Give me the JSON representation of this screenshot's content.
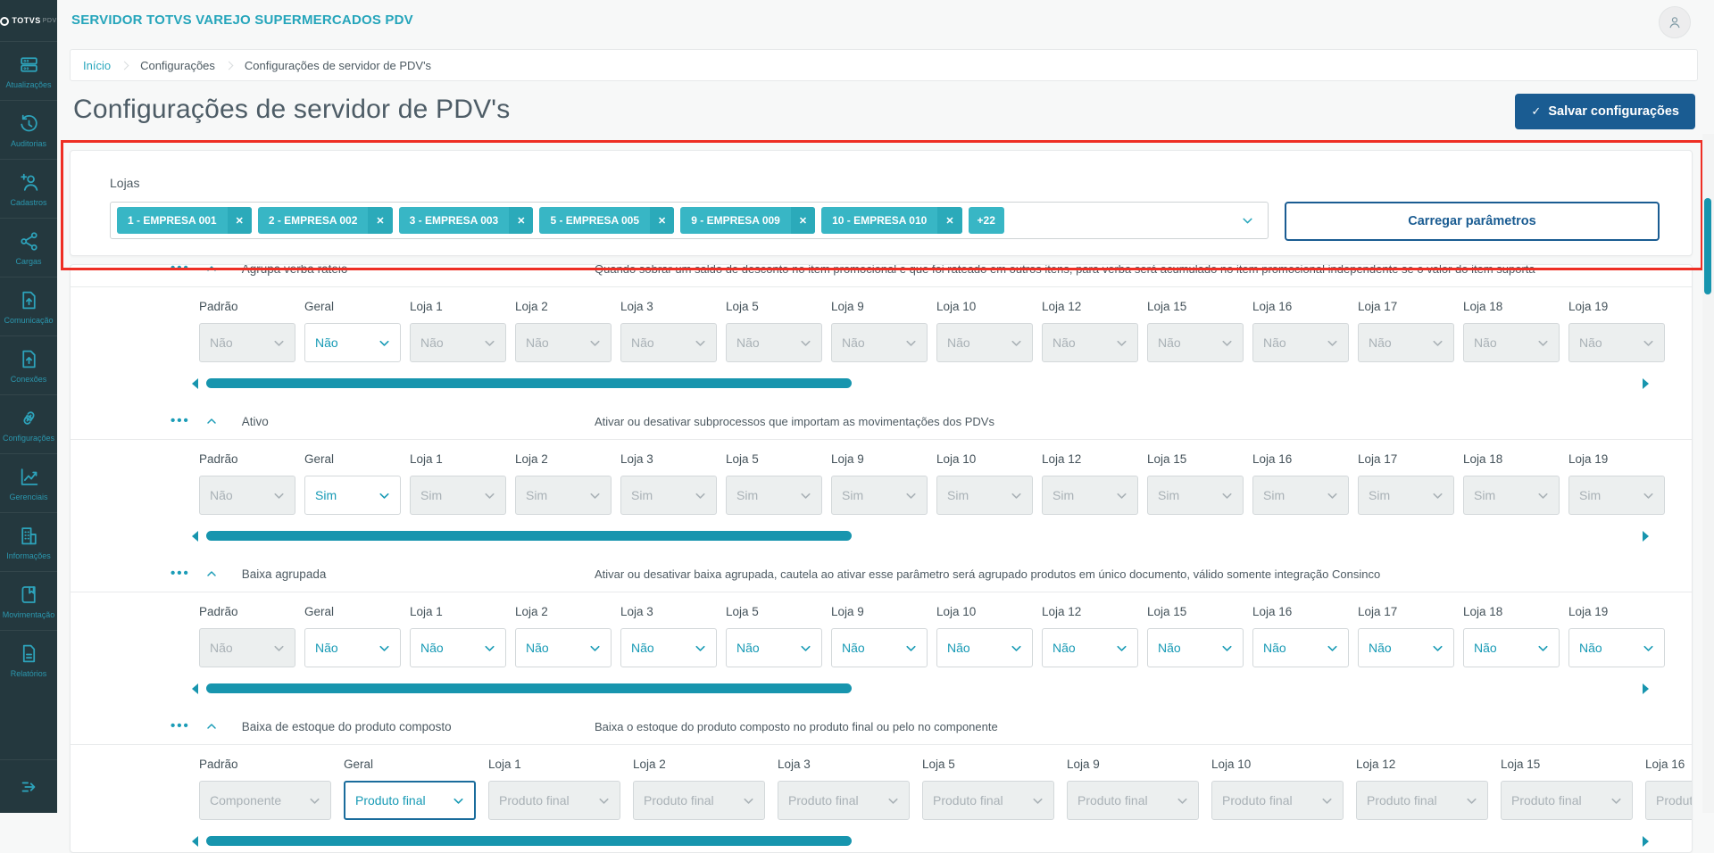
{
  "app": {
    "title": "SERVIDOR TOTVS VAREJO SUPERMERCADOS PDV"
  },
  "sidebar": {
    "logo_text": "TOTVS",
    "logo_suffix": "PDV",
    "items": [
      {
        "label": "Atualizações",
        "icon": "updates-icon"
      },
      {
        "label": "Auditorias",
        "icon": "audit-history-icon"
      },
      {
        "label": "Cadastros",
        "icon": "add-user-icon"
      },
      {
        "label": "Cargas",
        "icon": "share-icon"
      },
      {
        "label": "Comunicação",
        "icon": "file-upload-icon"
      },
      {
        "label": "Conexões",
        "icon": "file-upload-icon"
      },
      {
        "label": "Configurações",
        "icon": "link-icon"
      },
      {
        "label": "Gerenciais",
        "icon": "chart-icon"
      },
      {
        "label": "Informações",
        "icon": "building-icon"
      },
      {
        "label": "Movimentação",
        "icon": "book-icon"
      },
      {
        "label": "Relatórios",
        "icon": "report-icon"
      }
    ]
  },
  "breadcrumb": [
    "Início",
    "Configurações",
    "Configurações de servidor de PDV's"
  ],
  "page": {
    "title": "Configurações de servidor de PDV's",
    "save_button": "Salvar configurações",
    "save_check": "✓"
  },
  "lojas": {
    "label": "Lojas",
    "chips": [
      "1 - EMPRESA 001",
      "2 - EMPRESA 002",
      "3 - EMPRESA 003",
      "5 - EMPRESA 005",
      "9 - EMPRESA 009",
      "10 - EMPRESA 010"
    ],
    "more_chip": "+22",
    "remove_glyph": "✕",
    "load_button": "Carregar parâmetros"
  },
  "parameters": {
    "sections": [
      {
        "name": "Agrupa verba rateio",
        "description": "Quando sobrar um saldo de desconto no item promocional e que foi rateado em outros itens, para verba será acumulado no item promocional independente se o valor do item suporta",
        "clipped": true,
        "wide": false,
        "columns": [
          "Padrão",
          "Geral",
          "Loja 1",
          "Loja 2",
          "Loja 3",
          "Loja 5",
          "Loja 9",
          "Loja 10",
          "Loja 12",
          "Loja 15",
          "Loja 16",
          "Loja 17",
          "Loja 18",
          "Loja 19"
        ],
        "values": [
          {
            "value": "Não",
            "enabled": false
          },
          {
            "value": "Não",
            "enabled": true
          },
          {
            "value": "Não",
            "enabled": false
          },
          {
            "value": "Não",
            "enabled": false
          },
          {
            "value": "Não",
            "enabled": false
          },
          {
            "value": "Não",
            "enabled": false
          },
          {
            "value": "Não",
            "enabled": false
          },
          {
            "value": "Não",
            "enabled": false
          },
          {
            "value": "Não",
            "enabled": false
          },
          {
            "value": "Não",
            "enabled": false
          },
          {
            "value": "Não",
            "enabled": false
          },
          {
            "value": "Não",
            "enabled": false
          },
          {
            "value": "Não",
            "enabled": false
          },
          {
            "value": "Não",
            "enabled": false
          }
        ]
      },
      {
        "name": "Ativo",
        "description": "Ativar ou desativar subprocessos que importam as movimentações dos PDVs",
        "clipped": false,
        "wide": false,
        "columns": [
          "Padrão",
          "Geral",
          "Loja 1",
          "Loja 2",
          "Loja 3",
          "Loja 5",
          "Loja 9",
          "Loja 10",
          "Loja 12",
          "Loja 15",
          "Loja 16",
          "Loja 17",
          "Loja 18",
          "Loja 19"
        ],
        "values": [
          {
            "value": "Não",
            "enabled": false
          },
          {
            "value": "Sim",
            "enabled": true
          },
          {
            "value": "Sim",
            "enabled": false
          },
          {
            "value": "Sim",
            "enabled": false
          },
          {
            "value": "Sim",
            "enabled": false
          },
          {
            "value": "Sim",
            "enabled": false
          },
          {
            "value": "Sim",
            "enabled": false
          },
          {
            "value": "Sim",
            "enabled": false
          },
          {
            "value": "Sim",
            "enabled": false
          },
          {
            "value": "Sim",
            "enabled": false
          },
          {
            "value": "Sim",
            "enabled": false
          },
          {
            "value": "Sim",
            "enabled": false
          },
          {
            "value": "Sim",
            "enabled": false
          },
          {
            "value": "Sim",
            "enabled": false
          }
        ]
      },
      {
        "name": "Baixa agrupada",
        "description": "Ativar ou desativar baixa agrupada, cautela ao ativar esse parâmetro será agrupado produtos em único documento, válido somente integração Consinco",
        "clipped": false,
        "wide": false,
        "columns": [
          "Padrão",
          "Geral",
          "Loja 1",
          "Loja 2",
          "Loja 3",
          "Loja 5",
          "Loja 9",
          "Loja 10",
          "Loja 12",
          "Loja 15",
          "Loja 16",
          "Loja 17",
          "Loja 18",
          "Loja 19"
        ],
        "values": [
          {
            "value": "Não",
            "enabled": false
          },
          {
            "value": "Não",
            "enabled": true
          },
          {
            "value": "Não",
            "enabled": true
          },
          {
            "value": "Não",
            "enabled": true
          },
          {
            "value": "Não",
            "enabled": true
          },
          {
            "value": "Não",
            "enabled": true
          },
          {
            "value": "Não",
            "enabled": true
          },
          {
            "value": "Não",
            "enabled": true
          },
          {
            "value": "Não",
            "enabled": true
          },
          {
            "value": "Não",
            "enabled": true
          },
          {
            "value": "Não",
            "enabled": true
          },
          {
            "value": "Não",
            "enabled": true
          },
          {
            "value": "Não",
            "enabled": true
          },
          {
            "value": "Não",
            "enabled": true
          }
        ]
      },
      {
        "name": "Baixa de estoque do produto composto",
        "description": "Baixa o estoque do produto composto no produto final ou pelo no componente",
        "clipped": false,
        "wide": true,
        "columns": [
          "Padrão",
          "Geral",
          "Loja 1",
          "Loja 2",
          "Loja 3",
          "Loja 5",
          "Loja 9",
          "Loja 10",
          "Loja 12",
          "Loja 15",
          "Loja 16"
        ],
        "values": [
          {
            "value": "Componente",
            "enabled": false
          },
          {
            "value": "Produto final",
            "enabled": true,
            "focused": true
          },
          {
            "value": "Produto final",
            "enabled": false
          },
          {
            "value": "Produto final",
            "enabled": false
          },
          {
            "value": "Produto final",
            "enabled": false
          },
          {
            "value": "Produto final",
            "enabled": false
          },
          {
            "value": "Produto final",
            "enabled": false
          },
          {
            "value": "Produto final",
            "enabled": false
          },
          {
            "value": "Produto final",
            "enabled": false
          },
          {
            "value": "Produto final",
            "enabled": false
          },
          {
            "value": "Produto final",
            "enabled": false
          }
        ]
      }
    ]
  },
  "colors": {
    "accent_teal": "#25a5bb",
    "chip_teal": "#38b6c5",
    "dark_blue": "#1a5c92",
    "highlight_red": "#ee2e24",
    "scrollbar_teal": "#1795ae",
    "sidebar_bg": "#24383e"
  }
}
